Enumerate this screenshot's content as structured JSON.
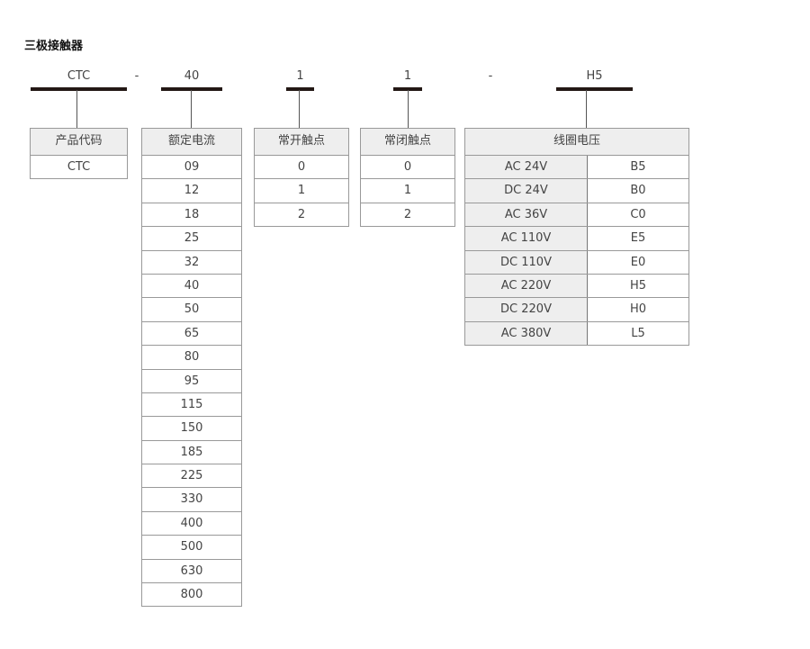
{
  "title": "三极接触器",
  "codes": {
    "product": "CTC",
    "sep1": "-",
    "current": "40",
    "no": "1",
    "nc": "1",
    "sep2": "-",
    "voltage": "H5"
  },
  "product": {
    "header": "产品代码",
    "values": [
      "CTC"
    ]
  },
  "current": {
    "header": "额定电流",
    "values": [
      "09",
      "12",
      "18",
      "25",
      "32",
      "40",
      "50",
      "65",
      "80",
      "95",
      "115",
      "150",
      "185",
      "225",
      "330",
      "400",
      "500",
      "630",
      "800"
    ]
  },
  "no": {
    "header": "常开触点",
    "values": [
      "0",
      "1",
      "2"
    ]
  },
  "nc": {
    "header": "常闭触点",
    "values": [
      "0",
      "1",
      "2"
    ]
  },
  "voltage": {
    "header": "线圈电压",
    "rows": [
      [
        "AC 24V",
        "B5"
      ],
      [
        "DC 24V",
        "B0"
      ],
      [
        "AC 36V",
        "C0"
      ],
      [
        "AC 110V",
        "E5"
      ],
      [
        "DC 110V",
        "E0"
      ],
      [
        "AC 220V",
        "H5"
      ],
      [
        "DC 220V",
        "H0"
      ],
      [
        "AC 380V",
        "L5"
      ]
    ]
  }
}
